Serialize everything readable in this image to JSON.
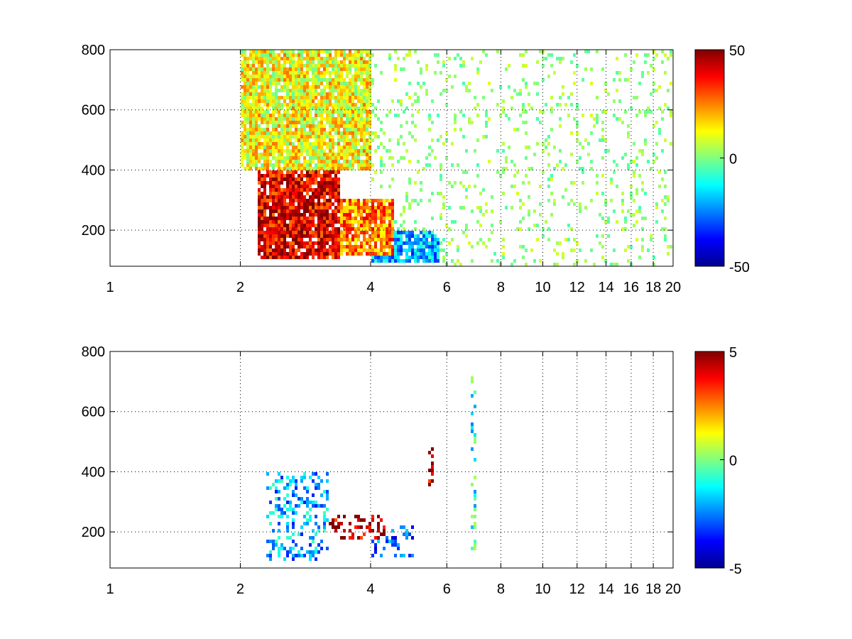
{
  "chart_data": [
    {
      "type": "heatmap",
      "title": "",
      "xlabel": "",
      "ylabel": "",
      "xscale": "log",
      "xlim": [
        1,
        20
      ],
      "ylim": [
        80,
        800
      ],
      "x_ticks": [
        1,
        2,
        4,
        6,
        8,
        10,
        12,
        14,
        16,
        18,
        20
      ],
      "x_tick_labels": [
        "1",
        "2",
        "4",
        "6",
        "8",
        "10",
        "12",
        "14",
        "16",
        "18",
        "20"
      ],
      "y_ticks": [
        200,
        400,
        600,
        800
      ],
      "y_tick_labels": [
        "200",
        "400",
        "600",
        "800"
      ],
      "grid": true,
      "colormap": "jet",
      "colorbar": {
        "placement": "right",
        "range": [
          -50,
          50
        ],
        "ticks": [
          -50,
          0,
          50
        ],
        "tick_labels": [
          "-50",
          "0",
          "50"
        ]
      },
      "regions": [
        {
          "x": [
            2.2,
            3.4
          ],
          "y": [
            100,
            400
          ],
          "value": 40
        },
        {
          "x": [
            3.4,
            4.5
          ],
          "y": [
            120,
            300
          ],
          "value": 25
        },
        {
          "x": [
            4.0,
            5.8
          ],
          "y": [
            90,
            200
          ],
          "value": -20
        },
        {
          "x": [
            2.0,
            4.0
          ],
          "y": [
            400,
            800
          ],
          "value": 12
        },
        {
          "x": [
            4.0,
            20.0
          ],
          "y": [
            80,
            800
          ],
          "value": 2
        }
      ]
    },
    {
      "type": "heatmap",
      "title": "",
      "xlabel": "",
      "ylabel": "",
      "xscale": "log",
      "xlim": [
        1,
        20
      ],
      "ylim": [
        80,
        800
      ],
      "x_ticks": [
        1,
        2,
        4,
        6,
        8,
        10,
        12,
        14,
        16,
        18,
        20
      ],
      "x_tick_labels": [
        "1",
        "2",
        "4",
        "6",
        "8",
        "10",
        "12",
        "14",
        "16",
        "18",
        "20"
      ],
      "y_ticks": [
        200,
        400,
        600,
        800
      ],
      "y_tick_labels": [
        "200",
        "400",
        "600",
        "800"
      ],
      "grid": true,
      "colormap": "jet",
      "colorbar": {
        "placement": "right",
        "range": [
          -5,
          5
        ],
        "ticks": [
          -5,
          0,
          5
        ],
        "tick_labels": [
          "-5",
          "0",
          "5"
        ]
      },
      "regions": [
        {
          "x": [
            2.3,
            3.2
          ],
          "y": [
            100,
            400
          ],
          "value": -2
        },
        {
          "x": [
            3.2,
            4.3
          ],
          "y": [
            180,
            260
          ],
          "value": 4.5
        },
        {
          "x": [
            4.0,
            5.0
          ],
          "y": [
            120,
            220
          ],
          "value": -3
        },
        {
          "x": [
            5.4,
            5.6
          ],
          "y": [
            340,
            480
          ],
          "value": 4.5
        },
        {
          "x": [
            6.8,
            7.0
          ],
          "y": [
            140,
            720
          ],
          "value": -1
        }
      ]
    }
  ]
}
